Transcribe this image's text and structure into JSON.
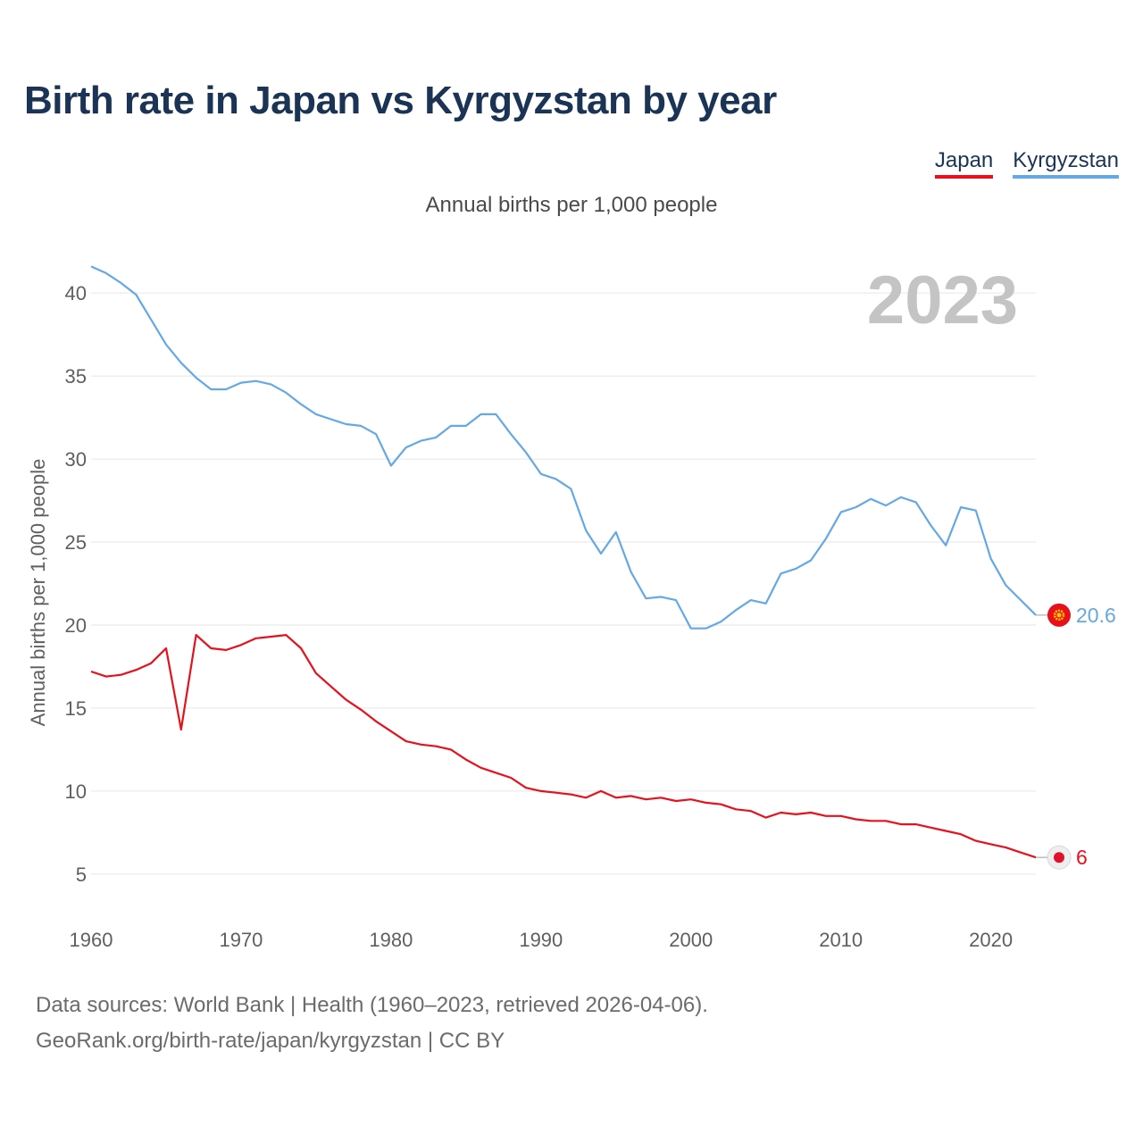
{
  "page": {
    "title": "Birth rate in Japan vs Kyrgyzstan by year",
    "subtitle": "Annual births per 1,000 people",
    "source_line1": "Data sources: World Bank | Health (1960–2023, retrieved 2026-04-06).",
    "source_line2": "GeoRank.org/birth-rate/japan/kyrgyzstan | CC BY"
  },
  "chart_data": {
    "type": "line",
    "title": "Birth rate in Japan vs Kyrgyzstan by year",
    "subtitle": "Annual births per 1,000 people",
    "xlabel": "",
    "ylabel": "Annual births per 1,000 people",
    "xlim": [
      1960,
      2023
    ],
    "ylim": [
      3,
      42
    ],
    "xticks": [
      1960,
      1970,
      1980,
      1990,
      2000,
      2010,
      2020
    ],
    "yticks": [
      5,
      10,
      15,
      20,
      25,
      30,
      35,
      40
    ],
    "grid": true,
    "legend": "top-right",
    "year_label": "2023",
    "x": [
      1960,
      1961,
      1962,
      1963,
      1964,
      1965,
      1966,
      1967,
      1968,
      1969,
      1970,
      1971,
      1972,
      1973,
      1974,
      1975,
      1976,
      1977,
      1978,
      1979,
      1980,
      1981,
      1982,
      1983,
      1984,
      1985,
      1986,
      1987,
      1988,
      1989,
      1990,
      1991,
      1992,
      1993,
      1994,
      1995,
      1996,
      1997,
      1998,
      1999,
      2000,
      2001,
      2002,
      2003,
      2004,
      2005,
      2006,
      2007,
      2008,
      2009,
      2010,
      2011,
      2012,
      2013,
      2014,
      2015,
      2016,
      2017,
      2018,
      2019,
      2020,
      2021,
      2022,
      2023
    ],
    "series": [
      {
        "name": "Japan",
        "color": "#e8101b",
        "end_label": "6",
        "values": [
          17.2,
          16.9,
          17.0,
          17.3,
          17.7,
          18.6,
          13.7,
          19.4,
          18.6,
          18.5,
          18.8,
          19.2,
          19.3,
          19.4,
          18.6,
          17.1,
          16.3,
          15.5,
          14.9,
          14.2,
          13.6,
          13.0,
          12.8,
          12.7,
          12.5,
          11.9,
          11.4,
          11.1,
          10.8,
          10.2,
          10.0,
          9.9,
          9.8,
          9.6,
          10.0,
          9.6,
          9.7,
          9.5,
          9.6,
          9.4,
          9.5,
          9.3,
          9.2,
          8.9,
          8.8,
          8.4,
          8.7,
          8.6,
          8.7,
          8.5,
          8.5,
          8.3,
          8.2,
          8.2,
          8.0,
          8.0,
          7.8,
          7.6,
          7.4,
          7.0,
          6.8,
          6.6,
          6.3,
          6.0
        ]
      },
      {
        "name": "Kyrgyzstan",
        "color": "#64a8e6",
        "end_label": "20.6",
        "values": [
          41.6,
          41.2,
          40.6,
          39.9,
          38.4,
          36.9,
          35.8,
          34.9,
          34.2,
          34.2,
          34.6,
          34.7,
          34.5,
          34.0,
          33.3,
          32.7,
          32.4,
          32.1,
          32.0,
          31.5,
          29.6,
          30.7,
          31.1,
          31.3,
          32.0,
          32.0,
          32.7,
          32.7,
          31.5,
          30.4,
          29.1,
          28.8,
          28.2,
          25.7,
          24.3,
          25.6,
          23.2,
          21.6,
          21.7,
          21.5,
          19.8,
          19.8,
          20.2,
          20.9,
          21.5,
          21.3,
          23.1,
          23.4,
          23.9,
          25.2,
          26.8,
          27.1,
          27.6,
          27.2,
          27.7,
          27.4,
          26.0,
          24.8,
          27.1,
          26.9,
          24.0,
          22.4,
          21.5,
          20.6
        ]
      }
    ]
  }
}
